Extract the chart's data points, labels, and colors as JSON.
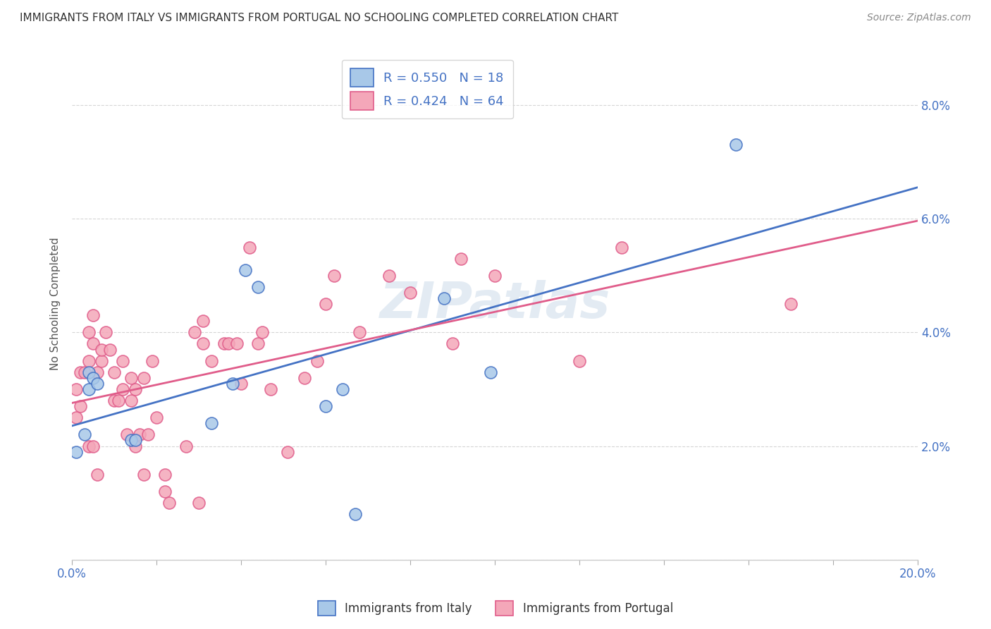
{
  "title": "IMMIGRANTS FROM ITALY VS IMMIGRANTS FROM PORTUGAL NO SCHOOLING COMPLETED CORRELATION CHART",
  "source": "Source: ZipAtlas.com",
  "ylabel": "No Schooling Completed",
  "xlim": [
    0.0,
    0.2
  ],
  "ylim": [
    0.0,
    0.09
  ],
  "xticks": [
    0.0,
    0.02,
    0.04,
    0.06,
    0.08,
    0.1,
    0.12,
    0.14,
    0.16,
    0.18,
    0.2
  ],
  "yticks_right": [
    0.0,
    0.02,
    0.04,
    0.06,
    0.08
  ],
  "italy_color": "#a8c8e8",
  "italy_color_line": "#4472c4",
  "portugal_color": "#f4a7b9",
  "portugal_color_line": "#e05c8a",
  "italy_R": 0.55,
  "italy_N": 18,
  "portugal_R": 0.424,
  "portugal_N": 64,
  "italy_scatter": [
    [
      0.001,
      0.019
    ],
    [
      0.003,
      0.022
    ],
    [
      0.004,
      0.033
    ],
    [
      0.004,
      0.03
    ],
    [
      0.005,
      0.032
    ],
    [
      0.006,
      0.031
    ],
    [
      0.014,
      0.021
    ],
    [
      0.015,
      0.021
    ],
    [
      0.033,
      0.024
    ],
    [
      0.038,
      0.031
    ],
    [
      0.041,
      0.051
    ],
    [
      0.044,
      0.048
    ],
    [
      0.06,
      0.027
    ],
    [
      0.064,
      0.03
    ],
    [
      0.067,
      0.008
    ],
    [
      0.088,
      0.046
    ],
    [
      0.099,
      0.033
    ],
    [
      0.157,
      0.073
    ]
  ],
  "portugal_scatter": [
    [
      0.001,
      0.025
    ],
    [
      0.001,
      0.03
    ],
    [
      0.002,
      0.027
    ],
    [
      0.002,
      0.033
    ],
    [
      0.003,
      0.033
    ],
    [
      0.004,
      0.02
    ],
    [
      0.004,
      0.035
    ],
    [
      0.004,
      0.04
    ],
    [
      0.005,
      0.02
    ],
    [
      0.005,
      0.038
    ],
    [
      0.005,
      0.043
    ],
    [
      0.006,
      0.015
    ],
    [
      0.006,
      0.033
    ],
    [
      0.007,
      0.035
    ],
    [
      0.007,
      0.037
    ],
    [
      0.008,
      0.04
    ],
    [
      0.009,
      0.037
    ],
    [
      0.01,
      0.028
    ],
    [
      0.01,
      0.033
    ],
    [
      0.011,
      0.028
    ],
    [
      0.012,
      0.03
    ],
    [
      0.012,
      0.035
    ],
    [
      0.013,
      0.022
    ],
    [
      0.014,
      0.032
    ],
    [
      0.014,
      0.028
    ],
    [
      0.015,
      0.02
    ],
    [
      0.015,
      0.03
    ],
    [
      0.016,
      0.022
    ],
    [
      0.017,
      0.032
    ],
    [
      0.017,
      0.015
    ],
    [
      0.018,
      0.022
    ],
    [
      0.019,
      0.035
    ],
    [
      0.02,
      0.025
    ],
    [
      0.022,
      0.012
    ],
    [
      0.022,
      0.015
    ],
    [
      0.023,
      0.01
    ],
    [
      0.027,
      0.02
    ],
    [
      0.029,
      0.04
    ],
    [
      0.03,
      0.01
    ],
    [
      0.031,
      0.038
    ],
    [
      0.031,
      0.042
    ],
    [
      0.033,
      0.035
    ],
    [
      0.036,
      0.038
    ],
    [
      0.037,
      0.038
    ],
    [
      0.039,
      0.038
    ],
    [
      0.04,
      0.031
    ],
    [
      0.042,
      0.055
    ],
    [
      0.044,
      0.038
    ],
    [
      0.045,
      0.04
    ],
    [
      0.047,
      0.03
    ],
    [
      0.051,
      0.019
    ],
    [
      0.055,
      0.032
    ],
    [
      0.058,
      0.035
    ],
    [
      0.06,
      0.045
    ],
    [
      0.062,
      0.05
    ],
    [
      0.068,
      0.04
    ],
    [
      0.075,
      0.05
    ],
    [
      0.08,
      0.047
    ],
    [
      0.09,
      0.038
    ],
    [
      0.092,
      0.053
    ],
    [
      0.1,
      0.05
    ],
    [
      0.12,
      0.035
    ],
    [
      0.13,
      0.055
    ],
    [
      0.17,
      0.045
    ]
  ],
  "watermark_text": "ZIPatlas",
  "background_color": "#ffffff",
  "grid_color": "#cccccc",
  "title_color": "#333333",
  "tick_label_color": "#4472c4",
  "axis_label_color": "#555555"
}
